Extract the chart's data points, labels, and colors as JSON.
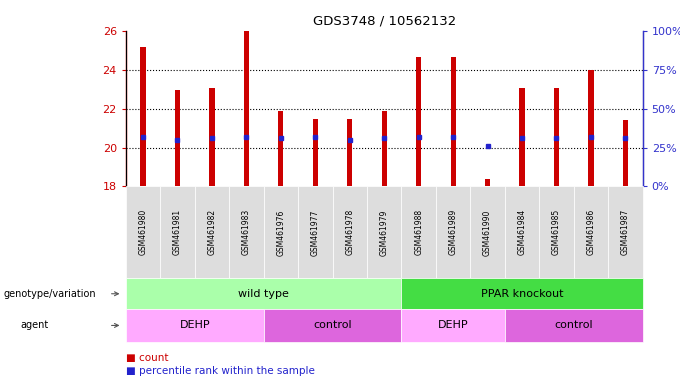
{
  "title": "GDS3748 / 10562132",
  "samples": [
    "GSM461980",
    "GSM461981",
    "GSM461982",
    "GSM461983",
    "GSM461976",
    "GSM461977",
    "GSM461978",
    "GSM461979",
    "GSM461988",
    "GSM461989",
    "GSM461990",
    "GSM461984",
    "GSM461985",
    "GSM461986",
    "GSM461987"
  ],
  "counts": [
    25.2,
    23.0,
    23.1,
    26.0,
    21.9,
    21.5,
    21.5,
    21.9,
    24.7,
    24.7,
    18.4,
    23.1,
    23.1,
    24.0,
    21.4
  ],
  "percentiles": [
    32,
    30,
    31,
    32,
    31,
    32,
    30,
    31,
    32,
    32,
    26,
    31,
    31,
    32,
    31
  ],
  "ylim_left": [
    18,
    26
  ],
  "ylim_right": [
    0,
    100
  ],
  "yticks_left": [
    18,
    20,
    22,
    24,
    26
  ],
  "yticks_right": [
    0,
    25,
    50,
    75,
    100
  ],
  "bar_color": "#cc0000",
  "dot_color": "#2222cc",
  "bar_width": 0.15,
  "genotype_groups": [
    {
      "label": "wild type",
      "start": 0,
      "end": 8,
      "color": "#aaffaa"
    },
    {
      "label": "PPAR knockout",
      "start": 8,
      "end": 15,
      "color": "#44dd44"
    }
  ],
  "agent_groups": [
    {
      "label": "DEHP",
      "start": 0,
      "end": 4,
      "color": "#ffaaff"
    },
    {
      "label": "control",
      "start": 4,
      "end": 8,
      "color": "#dd66dd"
    },
    {
      "label": "DEHP",
      "start": 8,
      "end": 11,
      "color": "#ffaaff"
    },
    {
      "label": "control",
      "start": 11,
      "end": 15,
      "color": "#dd66dd"
    }
  ],
  "background_color": "#ffffff",
  "grid_color": "#000000",
  "left_label_color": "#cc0000",
  "right_label_color": "#3333cc",
  "tick_bg_color": "#dddddd",
  "legend_items": [
    "count",
    "percentile rank within the sample"
  ],
  "legend_colors": [
    "#cc0000",
    "#2222cc"
  ]
}
